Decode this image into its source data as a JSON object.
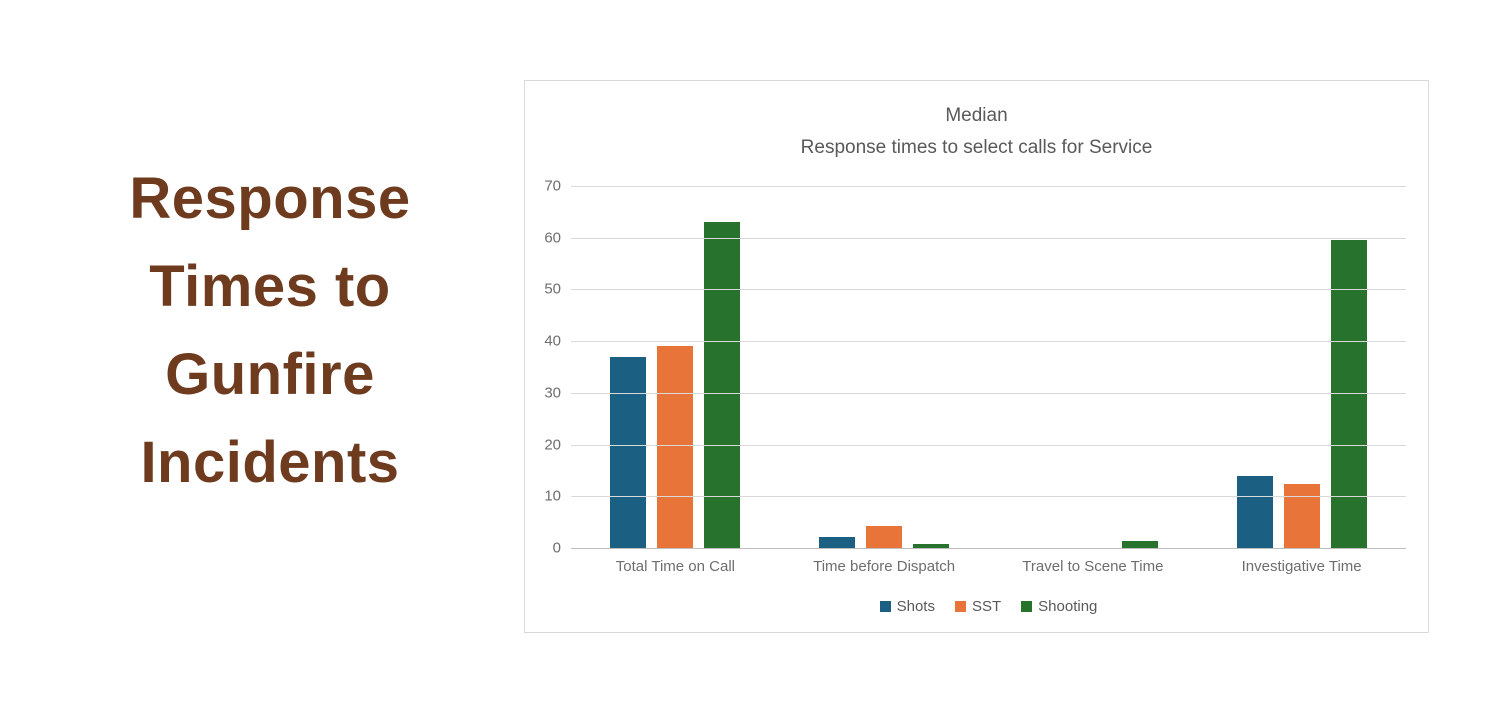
{
  "headline": {
    "lines": [
      "Response",
      "Times to",
      "Gunfire",
      "Incidents"
    ],
    "color": "#6E3B1E"
  },
  "chart_data": {
    "type": "bar",
    "title_lines": [
      "Median",
      "Response times to select calls for Service"
    ],
    "categories": [
      "Total Time on Call",
      "Time before Dispatch",
      "Travel to Scene Time",
      "Investigative Time"
    ],
    "series": [
      {
        "name": "Shots",
        "color": "#1B6083",
        "values": [
          37,
          2.2,
          0,
          14
        ]
      },
      {
        "name": "SST",
        "color": "#E97439",
        "values": [
          39,
          4.3,
          0,
          12.3
        ]
      },
      {
        "name": "Shooting",
        "color": "#27722C",
        "values": [
          63,
          0.8,
          1.4,
          59.5
        ]
      }
    ],
    "y_ticks": [
      70,
      60,
      50,
      40,
      30,
      20,
      10,
      0
    ],
    "ylim": [
      0,
      70
    ],
    "grid": true,
    "legend_position": "bottom",
    "grid_color": "#D9D9D9",
    "axis_line_color": "#BFBFBF"
  }
}
